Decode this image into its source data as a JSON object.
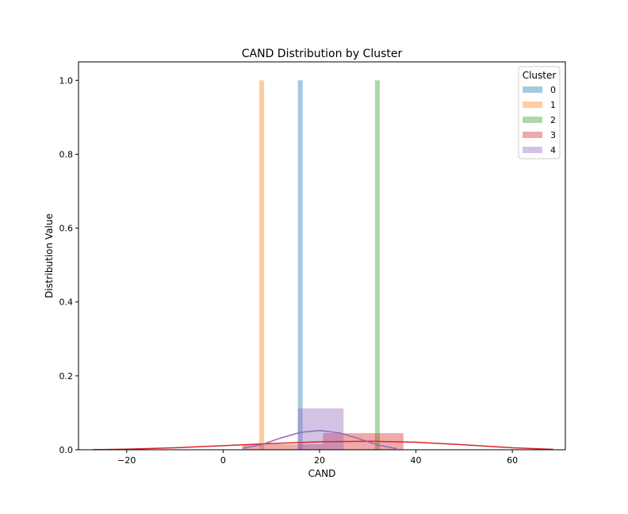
{
  "chart_data": {
    "type": "histogram",
    "title": "CAND Distribution by Cluster",
    "xlabel": "CAND",
    "ylabel": "Distribution Value",
    "xlim": [
      -30,
      71
    ],
    "ylim": [
      0,
      1.05
    ],
    "xticks": [
      -20,
      0,
      20,
      40,
      60
    ],
    "xtick_labels": [
      "−20",
      "0",
      "20",
      "40",
      "60"
    ],
    "yticks": [
      0.0,
      0.2,
      0.4,
      0.6,
      0.8,
      1.0
    ],
    "ytick_labels": [
      "0.0",
      "0.2",
      "0.4",
      "0.6",
      "0.8",
      "1.0"
    ],
    "grid": false,
    "legend": {
      "title": "Cluster",
      "placement": "top-right"
    },
    "series": [
      {
        "name": "0",
        "color": "#1f77b4",
        "bars": [
          {
            "x0": 15.5,
            "x1": 16.5,
            "height": 1.0
          }
        ]
      },
      {
        "name": "1",
        "color": "#ff7f0e",
        "bars": [
          {
            "x0": 7.5,
            "x1": 8.5,
            "height": 1.0
          }
        ]
      },
      {
        "name": "2",
        "color": "#2ca02c",
        "bars": [
          {
            "x0": 31.5,
            "x1": 32.5,
            "height": 1.0
          }
        ]
      },
      {
        "name": "3",
        "color": "#d62728",
        "bars": [
          {
            "x0": 4.0,
            "x1": 20.7,
            "height": 0.015
          },
          {
            "x0": 20.7,
            "x1": 37.4,
            "height": 0.045
          }
        ],
        "kde": {
          "x": [
            -27,
            -20,
            -10,
            0,
            10,
            20,
            30,
            40,
            50,
            60,
            68.5
          ],
          "y": [
            0.0003,
            0.0015,
            0.0055,
            0.011,
            0.017,
            0.0215,
            0.023,
            0.0205,
            0.0135,
            0.0055,
            0.0012
          ]
        }
      },
      {
        "name": "4",
        "color": "#9467bd",
        "bars": [
          {
            "x0": 15.5,
            "x1": 25.0,
            "height": 0.112
          }
        ],
        "kde": {
          "x": [
            4,
            8,
            12,
            16,
            20,
            24,
            28,
            32,
            36
          ],
          "y": [
            0.004,
            0.014,
            0.032,
            0.047,
            0.052,
            0.046,
            0.031,
            0.013,
            0.003
          ]
        }
      }
    ]
  }
}
